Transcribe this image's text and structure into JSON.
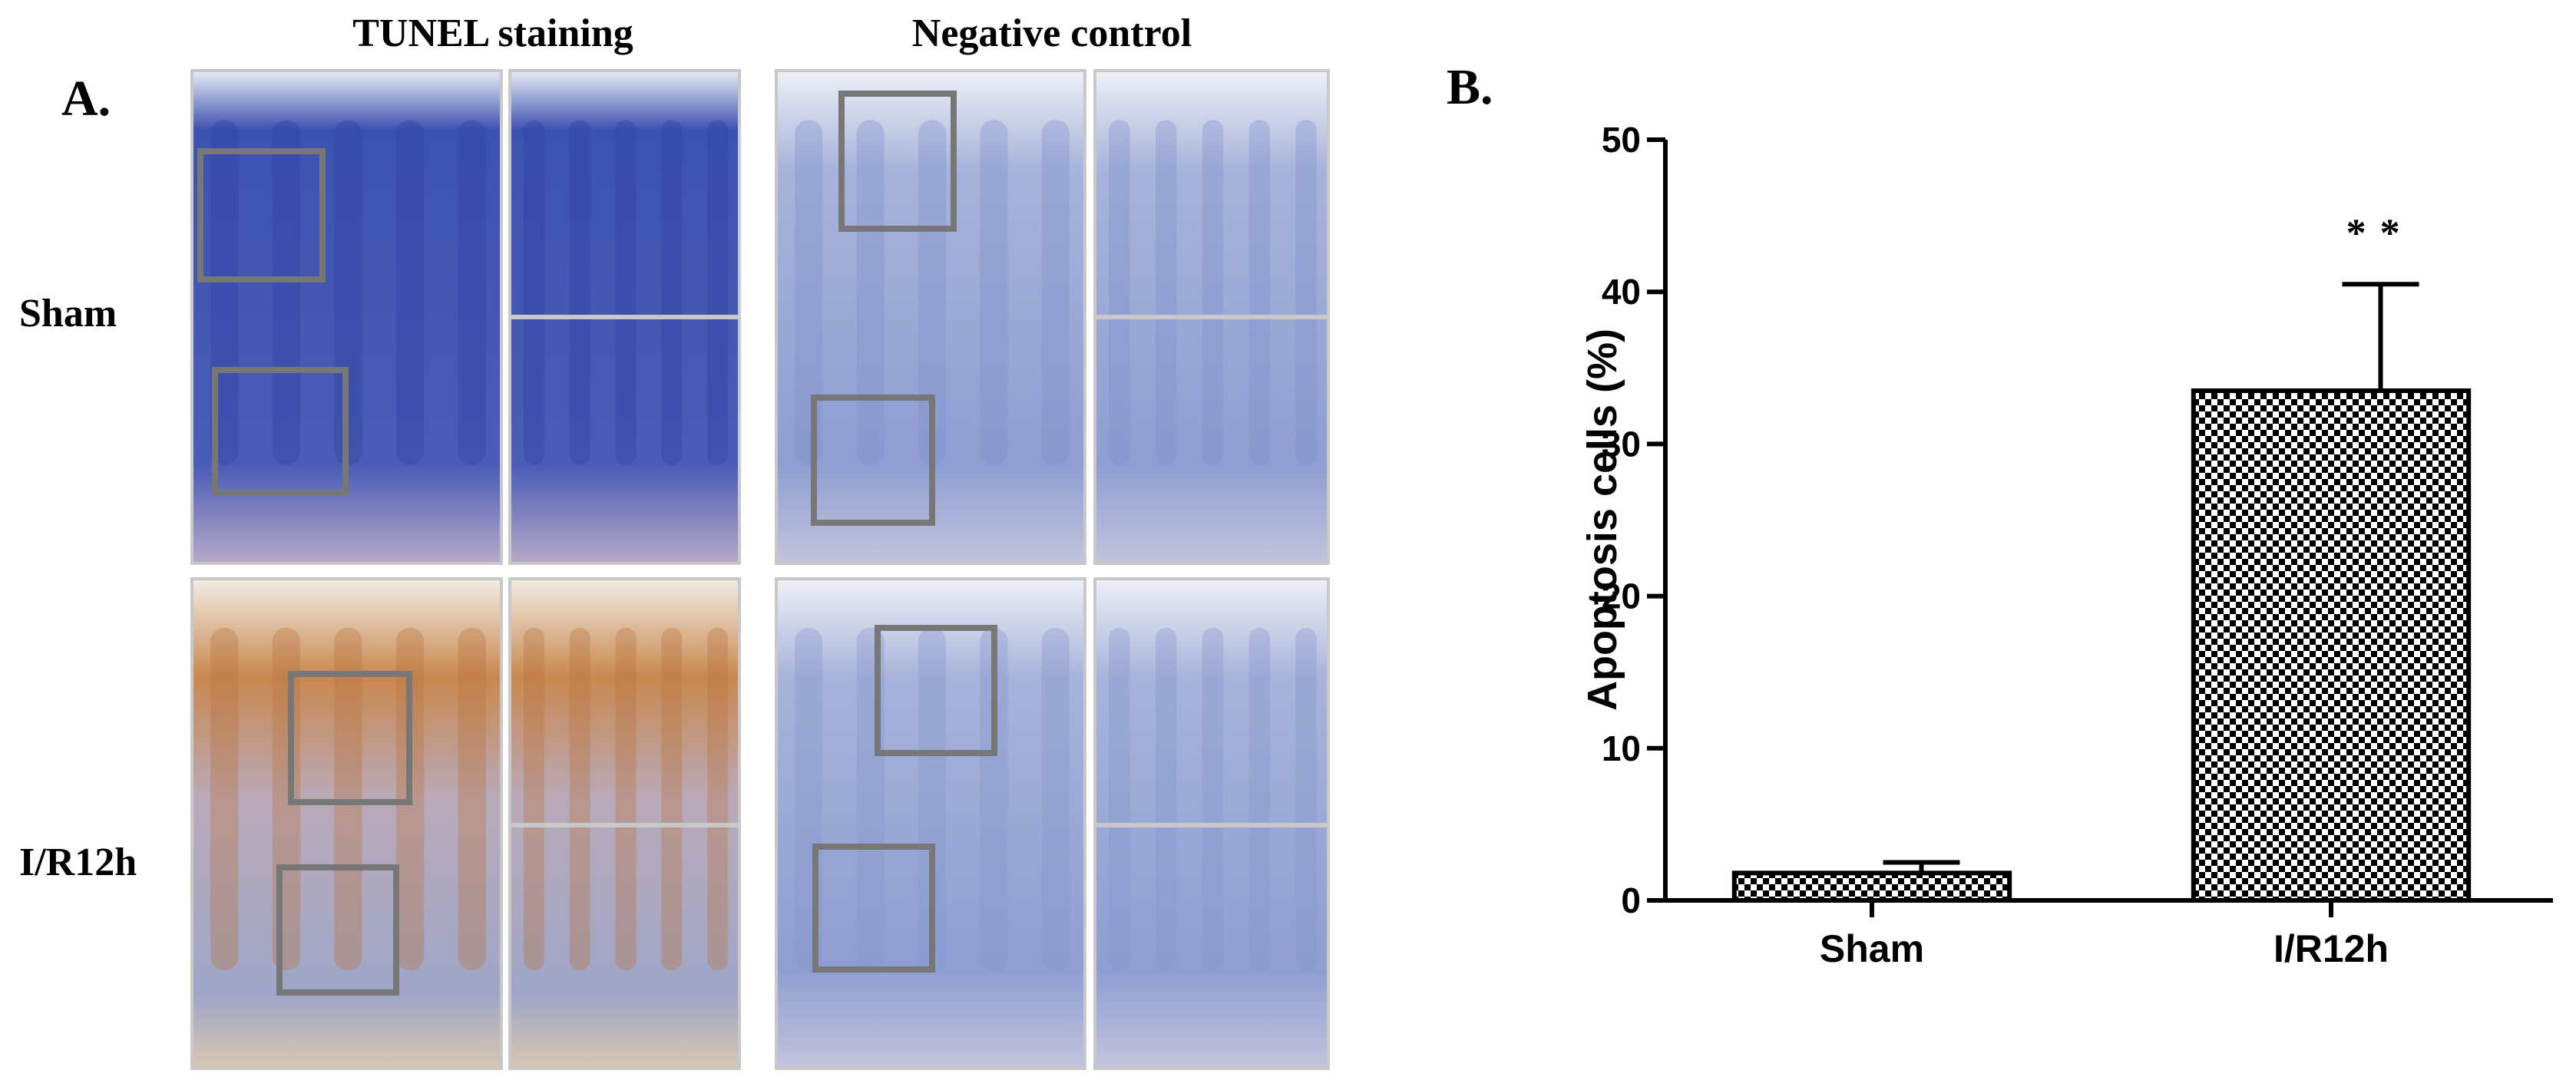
{
  "panel_a": {
    "label": "A.",
    "column_titles": [
      "TUNEL staining",
      "Negative control"
    ],
    "row_labels": [
      "Sham",
      "I/R12h"
    ]
  },
  "chart_data": {
    "type": "bar",
    "panel_label": "B.",
    "ylabel": "Apoptosis cells (%)",
    "categories": [
      "Sham",
      "I/R12h"
    ],
    "values": [
      1.8,
      33.5
    ],
    "errors": [
      0.7,
      7.0
    ],
    "annotation": "**",
    "color": "#000000",
    "ylim": [
      0,
      50
    ],
    "yticks": [
      0,
      10,
      20,
      30,
      40,
      50
    ]
  }
}
